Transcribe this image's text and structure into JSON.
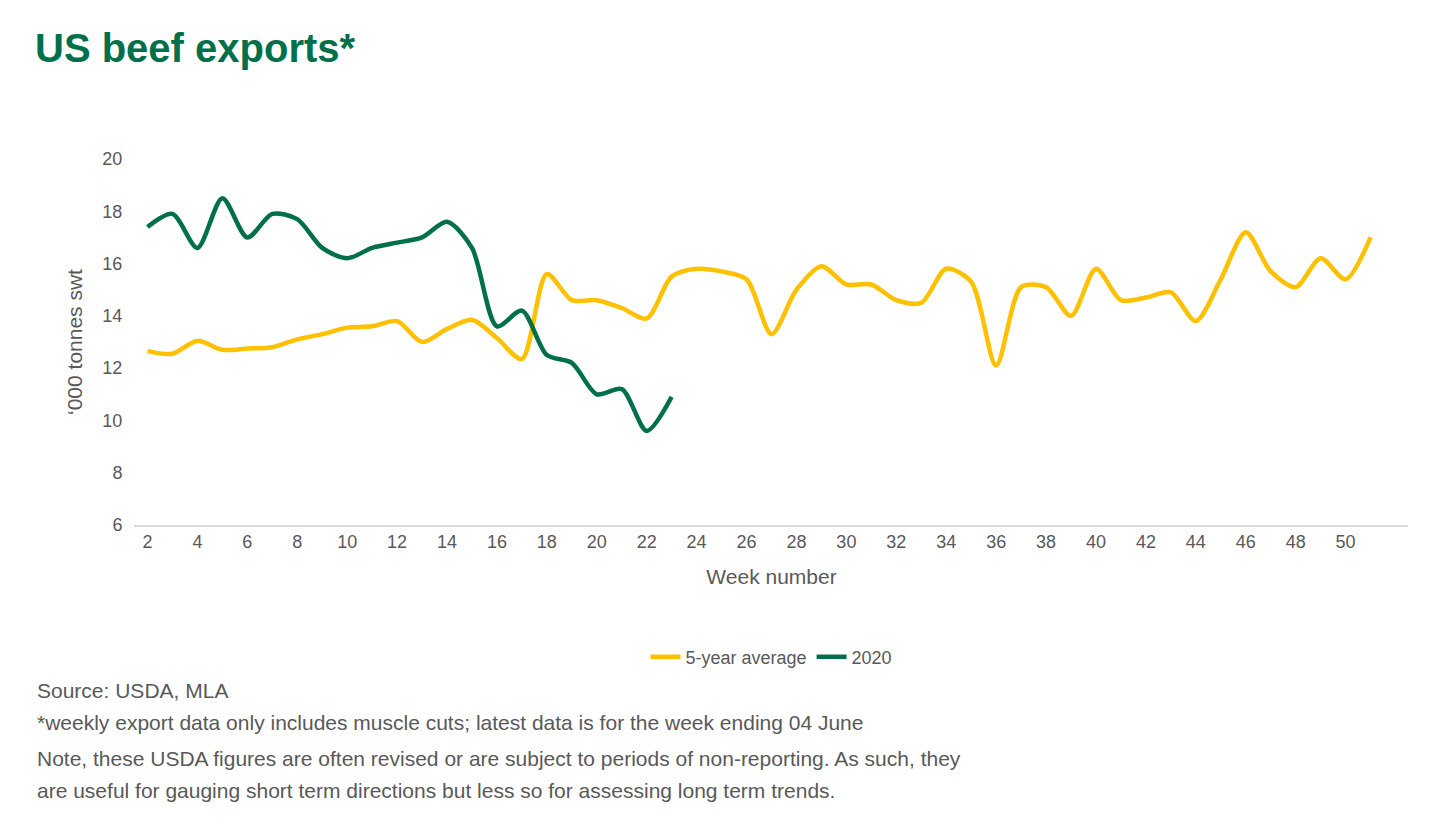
{
  "chart_data": {
    "type": "line",
    "title": "US beef exports*",
    "x_label": "Week number",
    "y_label": "‘000 tonnes swt",
    "x": [
      2,
      3,
      4,
      5,
      6,
      7,
      8,
      9,
      10,
      11,
      12,
      13,
      14,
      15,
      16,
      17,
      18,
      19,
      20,
      21,
      22,
      23,
      24,
      25,
      26,
      27,
      28,
      29,
      30,
      31,
      32,
      33,
      34,
      35,
      36,
      37,
      38,
      39,
      40,
      41,
      42,
      43,
      44,
      45,
      46,
      47,
      48,
      49,
      50,
      51
    ],
    "series": [
      {
        "name": "5-year average",
        "color": "#FFC000",
        "values": [
          12.65,
          12.55,
          13.05,
          12.7,
          12.75,
          12.8,
          13.1,
          13.3,
          13.55,
          13.6,
          13.8,
          13.0,
          13.5,
          13.85,
          13.15,
          12.35,
          15.6,
          14.6,
          14.6,
          14.3,
          13.9,
          15.5,
          15.8,
          15.7,
          15.4,
          13.3,
          15.0,
          15.9,
          15.2,
          15.2,
          14.6,
          14.5,
          15.8,
          15.3,
          12.1,
          15.1,
          15.1,
          14.0,
          15.8,
          14.6,
          14.7,
          14.9,
          13.8,
          15.4,
          17.2,
          15.7,
          15.1,
          16.2,
          15.4,
          17.0
        ]
      },
      {
        "name": "2020",
        "color": "#00704A",
        "values": [
          17.4,
          17.9,
          16.6,
          18.5,
          17.0,
          17.9,
          17.7,
          16.6,
          16.2,
          16.6,
          16.8,
          17.0,
          17.6,
          16.6,
          13.6,
          14.2,
          12.5,
          12.2,
          11.0,
          11.2,
          9.6,
          10.9,
          null,
          null,
          null,
          null,
          null,
          null,
          null,
          null,
          null,
          null,
          null,
          null,
          null,
          null,
          null,
          null,
          null,
          null,
          null,
          null,
          null,
          null,
          null,
          null,
          null,
          null,
          null,
          null
        ]
      }
    ],
    "xlim": [
      1.5,
      52.5
    ],
    "xticks": [
      2,
      4,
      6,
      8,
      10,
      12,
      14,
      16,
      18,
      20,
      22,
      24,
      26,
      28,
      30,
      32,
      34,
      36,
      38,
      40,
      42,
      44,
      46,
      48,
      50
    ],
    "ylim": [
      6,
      20
    ],
    "yticks": [
      6,
      8,
      10,
      12,
      14,
      16,
      18,
      20
    ],
    "grid": false,
    "legend": "bottom",
    "line_style": "smooth",
    "annotations": [
      "Source: USDA, MLA",
      "*weekly export data only includes muscle cuts; latest data is for the week ending 04 June",
      "Note, these USDA figures are often revised or are subject to periods of non-reporting. As such, they",
      "are useful for gauging short term directions but less so for assessing long term trends."
    ]
  }
}
